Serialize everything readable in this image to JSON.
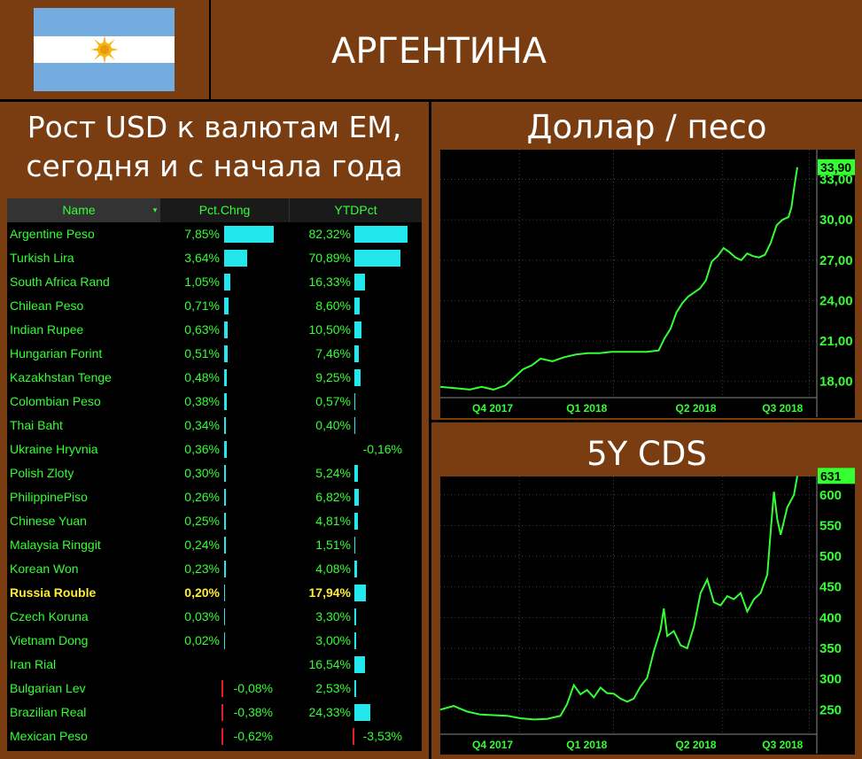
{
  "header": {
    "title": "АРГЕНТИНА",
    "flag_colors": {
      "blue": "#74acdf",
      "white": "#ffffff",
      "sun": "#f6b40e"
    }
  },
  "left_panel": {
    "title_line1": "Рост USD к валютам EM,",
    "title_line2": "сегодня и с начала года"
  },
  "table": {
    "headers": {
      "name": "Name",
      "pct": "Pct.Chng",
      "ytd": "YTDPct"
    },
    "rows": [
      {
        "name": "Argentine Peso",
        "pct_text": "7,85%",
        "pct": 7.85,
        "ytd_text": "82,32%",
        "ytd": 82.32
      },
      {
        "name": "Turkish Lira",
        "pct_text": "3,64%",
        "pct": 3.64,
        "ytd_text": "70,89%",
        "ytd": 70.89
      },
      {
        "name": "South Africa Rand",
        "pct_text": "1,05%",
        "pct": 1.05,
        "ytd_text": "16,33%",
        "ytd": 16.33
      },
      {
        "name": "Chilean Peso",
        "pct_text": "0,71%",
        "pct": 0.71,
        "ytd_text": "8,60%",
        "ytd": 8.6
      },
      {
        "name": "Indian Rupee",
        "pct_text": "0,63%",
        "pct": 0.63,
        "ytd_text": "10,50%",
        "ytd": 10.5
      },
      {
        "name": "Hungarian Forint",
        "pct_text": "0,51%",
        "pct": 0.51,
        "ytd_text": "7,46%",
        "ytd": 7.46
      },
      {
        "name": "Kazakhstan Tenge",
        "pct_text": "0,48%",
        "pct": 0.48,
        "ytd_text": "9,25%",
        "ytd": 9.25
      },
      {
        "name": "Colombian Peso",
        "pct_text": "0,38%",
        "pct": 0.38,
        "ytd_text": "0,57%",
        "ytd": 0.57
      },
      {
        "name": "Thai Baht",
        "pct_text": "0,34%",
        "pct": 0.34,
        "ytd_text": "0,40%",
        "ytd": 0.4
      },
      {
        "name": "Ukraine Hryvnia",
        "pct_text": "0,36%",
        "pct": 0.36,
        "ytd_text": "-0,16%",
        "ytd": -0.16
      },
      {
        "name": "Polish Zloty",
        "pct_text": "0,30%",
        "pct": 0.3,
        "ytd_text": "5,24%",
        "ytd": 5.24
      },
      {
        "name": "PhilippinePiso",
        "pct_text": "0,26%",
        "pct": 0.26,
        "ytd_text": "6,82%",
        "ytd": 6.82
      },
      {
        "name": "Chinese Yuan",
        "pct_text": "0,25%",
        "pct": 0.25,
        "ytd_text": "4,81%",
        "ytd": 4.81
      },
      {
        "name": "Malaysia Ringgit",
        "pct_text": "0,24%",
        "pct": 0.24,
        "ytd_text": "1,51%",
        "ytd": 1.51
      },
      {
        "name": "Korean Won",
        "pct_text": "0,23%",
        "pct": 0.23,
        "ytd_text": "4,08%",
        "ytd": 4.08
      },
      {
        "name": "Russia Rouble",
        "pct_text": "0,20%",
        "pct": 0.2,
        "ytd_text": "17,94%",
        "ytd": 17.94,
        "highlight": true
      },
      {
        "name": "Czech Koruna",
        "pct_text": "0,03%",
        "pct": 0.03,
        "ytd_text": "3,30%",
        "ytd": 3.3
      },
      {
        "name": "Vietnam Dong",
        "pct_text": "0,02%",
        "pct": 0.02,
        "ytd_text": "3,00%",
        "ytd": 3.0
      },
      {
        "name": "Iran Rial",
        "pct_text": "",
        "pct": 0,
        "ytd_text": "16,54%",
        "ytd": 16.54
      },
      {
        "name": "Bulgarian Lev",
        "pct_text": "-0,08%",
        "pct": -0.08,
        "ytd_text": "2,53%",
        "ytd": 2.53
      },
      {
        "name": "Brazilian Real",
        "pct_text": "-0,38%",
        "pct": -0.38,
        "ytd_text": "24,33%",
        "ytd": 24.33
      },
      {
        "name": "Mexican Peso",
        "pct_text": "-0,62%",
        "pct": -0.62,
        "ytd_text": "-3,53%",
        "ytd": -3.53
      }
    ],
    "colors": {
      "text": "#33ff33",
      "highlight": "#ffee33",
      "bar": "#22e8ee",
      "neg_bar": "#e02020"
    }
  },
  "chart_data": [
    {
      "type": "line",
      "title": "Доллар / песо",
      "x_ticks": [
        "Q4 2017",
        "Q1 2018",
        "Q2 2018",
        "Q3 2018"
      ],
      "y_ticks": [
        "18,00",
        "21,00",
        "24,00",
        "27,00",
        "30,00",
        "33,00"
      ],
      "ylim": [
        16.8,
        35.2
      ],
      "last_value": "33,90",
      "line_color": "#33ff33",
      "points": [
        [
          0,
          17.6
        ],
        [
          5,
          17.5
        ],
        [
          10,
          17.4
        ],
        [
          14,
          17.6
        ],
        [
          18,
          17.4
        ],
        [
          22,
          17.7
        ],
        [
          25,
          18.3
        ],
        [
          28,
          18.9
        ],
        [
          31,
          19.2
        ],
        [
          34,
          19.7
        ],
        [
          38,
          19.5
        ],
        [
          42,
          19.8
        ],
        [
          46,
          20.0
        ],
        [
          50,
          20.1
        ],
        [
          54,
          20.1
        ],
        [
          58,
          20.2
        ],
        [
          62,
          20.2
        ],
        [
          66,
          20.2
        ],
        [
          70,
          20.2
        ],
        [
          74,
          20.3
        ],
        [
          76,
          21.2
        ],
        [
          78,
          21.9
        ],
        [
          80,
          23.1
        ],
        [
          82,
          23.8
        ],
        [
          84,
          24.3
        ],
        [
          86,
          24.6
        ],
        [
          88,
          24.9
        ],
        [
          90,
          25.5
        ],
        [
          92,
          26.9
        ],
        [
          94,
          27.3
        ],
        [
          96,
          27.9
        ],
        [
          98,
          27.6
        ],
        [
          100,
          27.2
        ],
        [
          102,
          27.0
        ],
        [
          104,
          27.5
        ],
        [
          106,
          27.3
        ],
        [
          108,
          27.2
        ],
        [
          110,
          27.4
        ],
        [
          112,
          28.3
        ],
        [
          114,
          29.6
        ],
        [
          116,
          30.0
        ],
        [
          118,
          30.2
        ],
        [
          119,
          30.9
        ],
        [
          120,
          32.5
        ],
        [
          121,
          33.9
        ]
      ]
    },
    {
      "type": "line",
      "title": "5Y CDS",
      "x_ticks": [
        "Q4 2017",
        "Q1 2018",
        "Q2 2018",
        "Q3 2018"
      ],
      "y_ticks": [
        "250",
        "300",
        "350",
        "400",
        "450",
        "500",
        "550",
        "600"
      ],
      "ylim": [
        210,
        630
      ],
      "last_value": "631",
      "line_color": "#33ff33",
      "points": [
        [
          0,
          250
        ],
        [
          4,
          256
        ],
        [
          8,
          247
        ],
        [
          12,
          242
        ],
        [
          16,
          241
        ],
        [
          20,
          240
        ],
        [
          24,
          236
        ],
        [
          28,
          234
        ],
        [
          32,
          235
        ],
        [
          36,
          240
        ],
        [
          38,
          259
        ],
        [
          40,
          290
        ],
        [
          42,
          275
        ],
        [
          44,
          282
        ],
        [
          46,
          270
        ],
        [
          48,
          286
        ],
        [
          50,
          277
        ],
        [
          52,
          276
        ],
        [
          54,
          268
        ],
        [
          56,
          263
        ],
        [
          58,
          268
        ],
        [
          60,
          288
        ],
        [
          62,
          302
        ],
        [
          64,
          345
        ],
        [
          66,
          380
        ],
        [
          67,
          415
        ],
        [
          68,
          370
        ],
        [
          70,
          378
        ],
        [
          72,
          355
        ],
        [
          74,
          350
        ],
        [
          76,
          385
        ],
        [
          78,
          440
        ],
        [
          80,
          462
        ],
        [
          82,
          425
        ],
        [
          84,
          420
        ],
        [
          86,
          435
        ],
        [
          88,
          430
        ],
        [
          90,
          440
        ],
        [
          92,
          410
        ],
        [
          94,
          430
        ],
        [
          96,
          440
        ],
        [
          98,
          470
        ],
        [
          99,
          540
        ],
        [
          100,
          605
        ],
        [
          101,
          560
        ],
        [
          102,
          535
        ],
        [
          104,
          580
        ],
        [
          106,
          600
        ],
        [
          107,
          631
        ]
      ]
    }
  ]
}
